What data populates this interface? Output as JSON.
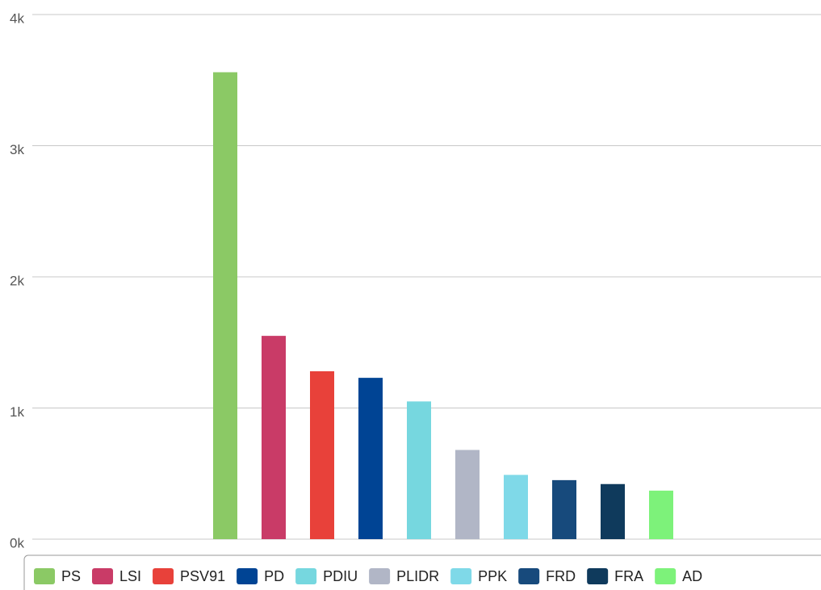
{
  "chart_data": {
    "type": "bar",
    "series": [
      {
        "name": "PS",
        "color": "#8bc965",
        "values": [
          3560
        ]
      },
      {
        "name": "LSI",
        "color": "#c93b67",
        "values": [
          1550
        ]
      },
      {
        "name": "PSV91",
        "color": "#e8413a",
        "values": [
          1280
        ]
      },
      {
        "name": "PD",
        "color": "#004494",
        "values": [
          1230
        ]
      },
      {
        "name": "PDIU",
        "color": "#76d7df",
        "values": [
          1050
        ]
      },
      {
        "name": "PLIDR",
        "color": "#b1b6c6",
        "values": [
          680
        ]
      },
      {
        "name": "PPK",
        "color": "#7fd9e8",
        "values": [
          490
        ]
      },
      {
        "name": "FRD",
        "color": "#174a7c",
        "values": [
          450
        ]
      },
      {
        "name": "FRA",
        "color": "#0f3a5c",
        "values": [
          420
        ]
      },
      {
        "name": "AD",
        "color": "#7df27a",
        "values": [
          370
        ]
      }
    ],
    "ylim": [
      0,
      4000
    ],
    "yticks": [
      {
        "value": 0,
        "label": "0k"
      },
      {
        "value": 1000,
        "label": "1k"
      },
      {
        "value": 2000,
        "label": "2k"
      },
      {
        "value": 3000,
        "label": "3k"
      },
      {
        "value": 4000,
        "label": "4k"
      }
    ],
    "grid": true
  }
}
